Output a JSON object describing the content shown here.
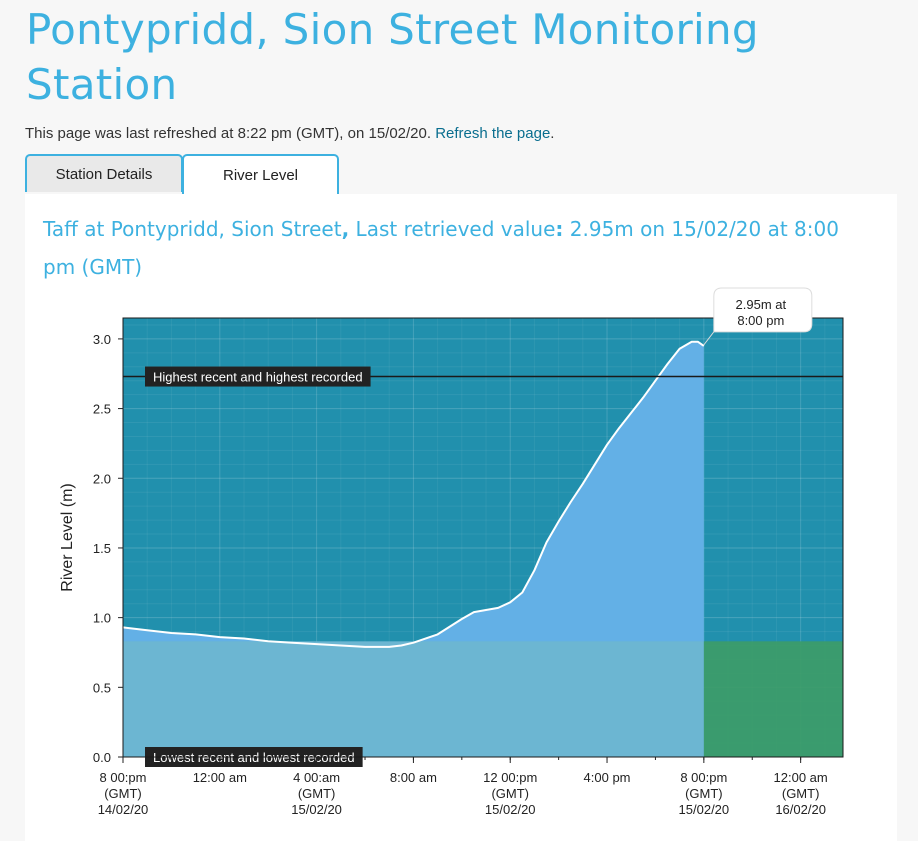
{
  "page": {
    "title": "Pontypridd, Sion Street Monitoring Station",
    "refresh_text": "This page was last refreshed at 8:22 pm (GMT), on 15/02/20.",
    "refresh_link": "Refresh the page",
    "refresh_suffix": "."
  },
  "tabs": [
    {
      "label": "Station Details",
      "active": false
    },
    {
      "label": "River Level",
      "active": true
    }
  ],
  "panel": {
    "heading_station": "Taff at Pontypridd, Sion Street",
    "heading_sep": ",",
    "heading_label": " Last retrieved value",
    "heading_colon": ":",
    "heading_value": " 2.95m on 15/02/20 at 8:00 pm (GMT)"
  },
  "colors": {
    "title": "#3db1e0",
    "plot_background": "#2190ad",
    "area_fill": "#63b0e6",
    "normal_band": "#6cb6d2",
    "forecast_band": "#3d9c68",
    "level_line": "#ffffff",
    "threshold_line": "#1a1a1a"
  },
  "chart_data": {
    "type": "area",
    "xlabel": "",
    "ylabel": "River Level (m)",
    "ylim": [
      0,
      3.15
    ],
    "xlim": [
      "14/02/20 20:00",
      "16/02/20 01:45"
    ],
    "y_ticks": [
      "0.0",
      "0.5",
      "1.0",
      "1.5",
      "2.0",
      "2.5",
      "3.0"
    ],
    "x_ticks": [
      {
        "time": "14/02/20 20:00",
        "lines": [
          "8 00:pm",
          "(GMT)",
          "14/02/20"
        ]
      },
      {
        "time": "15/02/20 00:00",
        "lines": [
          "12:00 am"
        ]
      },
      {
        "time": "15/02/20 04:00",
        "lines": [
          "4 00:am",
          "(GMT)",
          "15/02/20"
        ]
      },
      {
        "time": "15/02/20 08:00",
        "lines": [
          "8:00 am"
        ]
      },
      {
        "time": "15/02/20 12:00",
        "lines": [
          "12 00:pm",
          "(GMT)",
          "15/02/20"
        ]
      },
      {
        "time": "15/02/20 16:00",
        "lines": [
          "4:00 pm"
        ]
      },
      {
        "time": "15/02/20 20:00",
        "lines": [
          "8 00:pm",
          "(GMT)",
          "15/02/20"
        ]
      },
      {
        "time": "16/02/20 00:00",
        "lines": [
          "12:00 am",
          "(GMT)",
          "16/02/20"
        ]
      }
    ],
    "grid": true,
    "series": [
      {
        "values": [
          {
            "t": "14/02/20 20:00",
            "y": 0.93
          },
          {
            "t": "14/02/20 21:00",
            "y": 0.91
          },
          {
            "t": "14/02/20 22:00",
            "y": 0.89
          },
          {
            "t": "14/02/20 23:00",
            "y": 0.88
          },
          {
            "t": "15/02/20 00:00",
            "y": 0.86
          },
          {
            "t": "15/02/20 01:00",
            "y": 0.85
          },
          {
            "t": "15/02/20 02:00",
            "y": 0.83
          },
          {
            "t": "15/02/20 03:00",
            "y": 0.82
          },
          {
            "t": "15/02/20 04:00",
            "y": 0.81
          },
          {
            "t": "15/02/20 05:00",
            "y": 0.8
          },
          {
            "t": "15/02/20 06:00",
            "y": 0.79
          },
          {
            "t": "15/02/20 07:00",
            "y": 0.79
          },
          {
            "t": "15/02/20 07:30",
            "y": 0.8
          },
          {
            "t": "15/02/20 08:00",
            "y": 0.82
          },
          {
            "t": "15/02/20 09:00",
            "y": 0.88
          },
          {
            "t": "15/02/20 10:00",
            "y": 0.99
          },
          {
            "t": "15/02/20 10:30",
            "y": 1.04
          },
          {
            "t": "15/02/20 11:30",
            "y": 1.07
          },
          {
            "t": "15/02/20 12:00",
            "y": 1.11
          },
          {
            "t": "15/02/20 12:30",
            "y": 1.18
          },
          {
            "t": "15/02/20 13:00",
            "y": 1.34
          },
          {
            "t": "15/02/20 13:30",
            "y": 1.54
          },
          {
            "t": "15/02/20 14:00",
            "y": 1.69
          },
          {
            "t": "15/02/20 14:30",
            "y": 1.83
          },
          {
            "t": "15/02/20 15:00",
            "y": 1.96
          },
          {
            "t": "15/02/20 15:30",
            "y": 2.1
          },
          {
            "t": "15/02/20 16:00",
            "y": 2.24
          },
          {
            "t": "15/02/20 16:30",
            "y": 2.36
          },
          {
            "t": "15/02/20 17:00",
            "y": 2.47
          },
          {
            "t": "15/02/20 17:30",
            "y": 2.58
          },
          {
            "t": "15/02/20 18:00",
            "y": 2.7
          },
          {
            "t": "15/02/20 18:30",
            "y": 2.82
          },
          {
            "t": "15/02/20 19:00",
            "y": 2.93
          },
          {
            "t": "15/02/20 19:30",
            "y": 2.98
          },
          {
            "t": "15/02/20 19:45",
            "y": 2.98
          },
          {
            "t": "15/02/20 20:00",
            "y": 2.95
          }
        ]
      }
    ],
    "bands": [
      {
        "y_from": 0,
        "y_to": 0.83,
        "x_from": "14/02/20 20:00",
        "x_to": "15/02/20 20:00",
        "color": "#6cb6d2"
      },
      {
        "y_from": 0,
        "y_to": 0.83,
        "x_from": "15/02/20 20:00",
        "x_to": "16/02/20 01:45",
        "color": "#3d9c68"
      }
    ],
    "annotations": [
      {
        "label": "Highest recent and highest recorded",
        "y": 2.73,
        "line": true
      },
      {
        "label": "Lowest recent and lowest recorded",
        "y": 0.0,
        "line": false
      }
    ],
    "tooltip": {
      "lines": [
        "2.95m at",
        "8:00 pm"
      ],
      "at": "15/02/20 20:00"
    }
  }
}
